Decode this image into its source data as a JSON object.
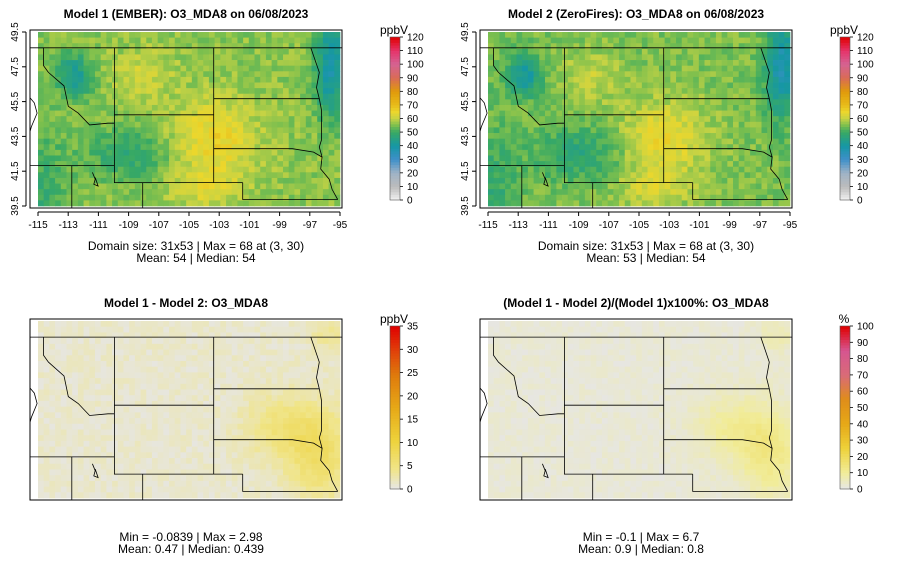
{
  "chart_data": [
    {
      "type": "heatmap",
      "title": "Model 1 (EMBER): O3_MDA8 on 06/08/2023",
      "unit_label": "ppbV",
      "x_ticks": [
        "-115",
        "-113",
        "-111",
        "-109",
        "-107",
        "-105",
        "-103",
        "-101",
        "-99",
        "-97",
        "-95"
      ],
      "y_ticks": [
        "39.5",
        "41.5",
        "43.5",
        "45.5",
        "47.5",
        "49.5"
      ],
      "xlim": [
        -115,
        -95
      ],
      "ylim": [
        39.5,
        49.5
      ],
      "colorbar": {
        "min": 0,
        "max": 120,
        "ticks": [
          "0",
          "10",
          "20",
          "30",
          "40",
          "50",
          "60",
          "70",
          "80",
          "90",
          "100",
          "110",
          "120"
        ]
      },
      "field": {
        "variant": "model",
        "mean_level": 54
      },
      "stats_line1": "Domain size: 31x53 | Max = 68 at (3, 30)",
      "stats_line2": "Mean: 54 |  Median: 54"
    },
    {
      "type": "heatmap",
      "title": "Model 2 (ZeroFires): O3_MDA8 on 06/08/2023",
      "unit_label": "ppbV",
      "x_ticks": [
        "-115",
        "-113",
        "-111",
        "-109",
        "-107",
        "-105",
        "-103",
        "-101",
        "-99",
        "-97",
        "-95"
      ],
      "y_ticks": [
        "39.5",
        "41.5",
        "43.5",
        "45.5",
        "47.5",
        "49.5"
      ],
      "xlim": [
        -115,
        -95
      ],
      "ylim": [
        39.5,
        49.5
      ],
      "colorbar": {
        "min": 0,
        "max": 120,
        "ticks": [
          "0",
          "10",
          "20",
          "30",
          "40",
          "50",
          "60",
          "70",
          "80",
          "90",
          "100",
          "110",
          "120"
        ]
      },
      "field": {
        "variant": "model",
        "mean_level": 53
      },
      "stats_line1": "Domain size: 31x53 | Max = 68 at (3, 30)",
      "stats_line2": "Mean: 53 |  Median: 54"
    },
    {
      "type": "heatmap",
      "title": "Model 1 - Model 2: O3_MDA8",
      "unit_label": "ppbV",
      "x_ticks": [],
      "y_ticks": [],
      "colorbar": {
        "min": 0,
        "max": 35,
        "ticks": [
          "0",
          "5",
          "10",
          "15",
          "20",
          "25",
          "30",
          "35"
        ]
      },
      "field": {
        "variant": "diff",
        "min": -0.0839,
        "max": 2.98
      },
      "stats_line1": "Min = -0.0839 | Max = 2.98",
      "stats_line2": "Mean: 0.47 |  Median: 0.439"
    },
    {
      "type": "heatmap",
      "title": "(Model 1 - Model 2)/(Model 1)x100%: O3_MDA8",
      "unit_label": "%",
      "x_ticks": [],
      "y_ticks": [],
      "colorbar": {
        "min": 0,
        "max": 100,
        "ticks": [
          "0",
          "10",
          "20",
          "30",
          "40",
          "50",
          "60",
          "70",
          "80",
          "90",
          "100"
        ]
      },
      "field": {
        "variant": "pct",
        "min": -0.1,
        "max": 6.7
      },
      "stats_line1": "Min = -0.1 | Max = 6.7",
      "stats_line2": "Mean: 0.9 |  Median: 0.8"
    }
  ]
}
